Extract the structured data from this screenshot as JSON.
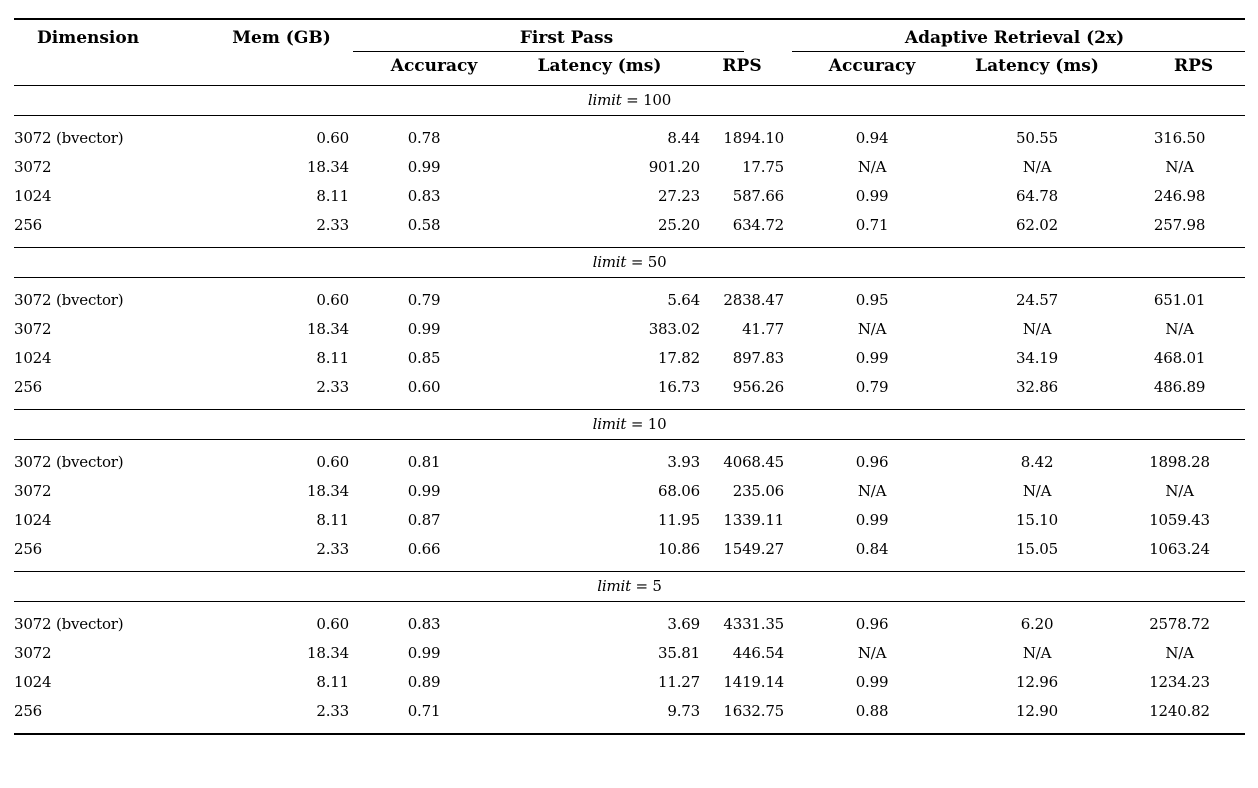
{
  "table": {
    "columns": [
      "dimension",
      "mem_gb",
      "fp_accuracy",
      "fp_latency_ms",
      "fp_rps",
      "ar_accuracy",
      "ar_latency_ms",
      "ar_rps"
    ],
    "header": {
      "dimension": "Dimension",
      "mem": "Mem (GB)",
      "group_first_pass": "First Pass",
      "group_adaptive": "Adaptive Retrieval (2x)",
      "sub": [
        "Accuracy",
        "Latency (ms)",
        "RPS",
        "Accuracy",
        "Latency (ms)",
        "RPS"
      ]
    },
    "sections": [
      {
        "label": {
          "var": "limit",
          "rest": "= 100"
        },
        "rows": [
          [
            "3072 (bvector)",
            "0.60",
            "0.78",
            "8.44",
            "1894.10",
            "0.94",
            "50.55",
            "316.50"
          ],
          [
            "3072",
            "18.34",
            "0.99",
            "901.20",
            "17.75",
            "N/A",
            "N/A",
            "N/A"
          ],
          [
            "1024",
            "8.11",
            "0.83",
            "27.23",
            "587.66",
            "0.99",
            "64.78",
            "246.98"
          ],
          [
            "256",
            "2.33",
            "0.58",
            "25.20",
            "634.72",
            "0.71",
            "62.02",
            "257.98"
          ]
        ]
      },
      {
        "label": {
          "var": "limit",
          "rest": "= 50"
        },
        "rows": [
          [
            "3072 (bvector)",
            "0.60",
            "0.79",
            "5.64",
            "2838.47",
            "0.95",
            "24.57",
            "651.01"
          ],
          [
            "3072",
            "18.34",
            "0.99",
            "383.02",
            "41.77",
            "N/A",
            "N/A",
            "N/A"
          ],
          [
            "1024",
            "8.11",
            "0.85",
            "17.82",
            "897.83",
            "0.99",
            "34.19",
            "468.01"
          ],
          [
            "256",
            "2.33",
            "0.60",
            "16.73",
            "956.26",
            "0.79",
            "32.86",
            "486.89"
          ]
        ]
      },
      {
        "label": {
          "var": "limit",
          "rest": "= 10"
        },
        "rows": [
          [
            "3072 (bvector)",
            "0.60",
            "0.81",
            "3.93",
            "4068.45",
            "0.96",
            "8.42",
            "1898.28"
          ],
          [
            "3072",
            "18.34",
            "0.99",
            "68.06",
            "235.06",
            "N/A",
            "N/A",
            "N/A"
          ],
          [
            "1024",
            "8.11",
            "0.87",
            "11.95",
            "1339.11",
            "0.99",
            "15.10",
            "1059.43"
          ],
          [
            "256",
            "2.33",
            "0.66",
            "10.86",
            "1549.27",
            "0.84",
            "15.05",
            "1063.24"
          ]
        ]
      },
      {
        "label": {
          "var": "limit",
          "rest": "= 5"
        },
        "rows": [
          [
            "3072 (bvector)",
            "0.60",
            "0.83",
            "3.69",
            "4331.35",
            "0.96",
            "6.20",
            "2578.72"
          ],
          [
            "3072",
            "18.34",
            "0.99",
            "35.81",
            "446.54",
            "N/A",
            "N/A",
            "N/A"
          ],
          [
            "1024",
            "8.11",
            "0.89",
            "11.27",
            "1419.14",
            "0.99",
            "12.96",
            "1234.23"
          ],
          [
            "256",
            "2.33",
            "0.71",
            "9.73",
            "1632.75",
            "0.88",
            "12.90",
            "1240.82"
          ]
        ]
      }
    ],
    "colors": {
      "rule": "#000000",
      "text": "#000000",
      "background": "#ffffff"
    }
  }
}
